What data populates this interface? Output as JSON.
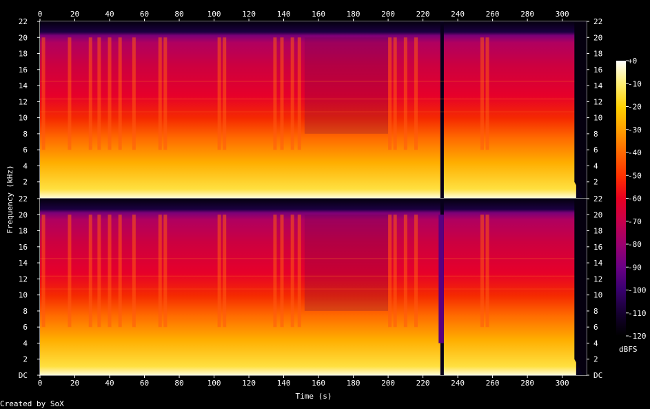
{
  "chart_data": {
    "type": "heatmap",
    "subtype": "spectrogram",
    "channels": 2,
    "xlabel": "Time (s)",
    "ylabel": "Frequency (kHz)",
    "x_ticks": [
      0,
      20,
      40,
      60,
      80,
      100,
      120,
      140,
      160,
      180,
      200,
      220,
      240,
      260,
      280,
      300
    ],
    "xlim": [
      0,
      314
    ],
    "y_ticks": [
      2,
      4,
      6,
      8,
      10,
      12,
      14,
      16,
      18,
      20,
      22
    ],
    "y_bottom_label": "DC",
    "ylim": [
      0,
      22
    ],
    "colorbar": {
      "label": "dBFS",
      "ticks": [
        "+0",
        "-10",
        "-20",
        "-30",
        "-40",
        "-50",
        "-60",
        "-70",
        "-80",
        "-90",
        "-100",
        "-110",
        "-120"
      ],
      "range": [
        -120,
        0
      ]
    },
    "colormap": [
      "#000000",
      "#14002e",
      "#3a0070",
      "#6a0085",
      "#9a0070",
      "#c8004a",
      "#e80020",
      "#ff3000",
      "#ff6a00",
      "#ffa000",
      "#ffd000",
      "#fff07a",
      "#ffffff"
    ],
    "energy_profile": {
      "dense_segments_s": [
        [
          0,
          230
        ],
        [
          232,
          308
        ]
      ],
      "burst_times_s": [
        2,
        17,
        29,
        34,
        40,
        46,
        54,
        69,
        72,
        103,
        106,
        135,
        139,
        145,
        149,
        201,
        204,
        210,
        216,
        254,
        257
      ],
      "quiet_region_s": [
        152,
        200
      ],
      "dropout_channel2_s": [
        229,
        232
      ],
      "end_fade_s": [
        307,
        312
      ],
      "cutoff_khz": 20
    }
  },
  "footer": {
    "credit": "Created by SoX"
  }
}
